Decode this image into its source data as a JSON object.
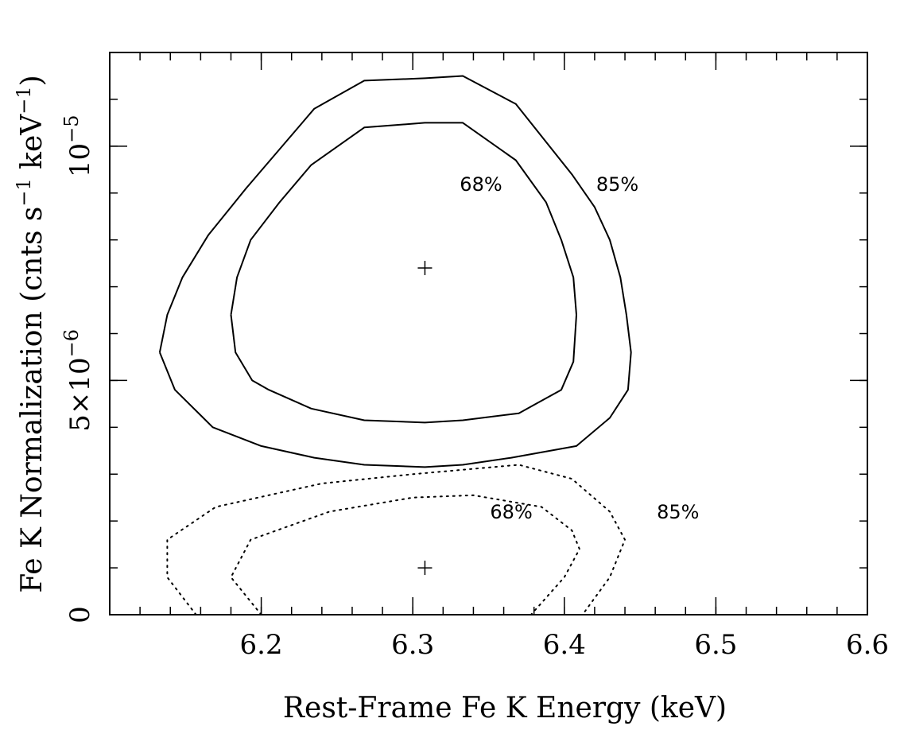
{
  "chart_data": {
    "type": "contour",
    "xlabel": "Rest-Frame Fe K Energy (keV)",
    "ylabel_parts": [
      "Fe K Normalization (cnts s",
      "−1",
      " keV",
      "−1",
      ")"
    ],
    "xlim": [
      6.1,
      6.6
    ],
    "ylim": [
      0,
      1.2e-05
    ],
    "x_ticks": [
      {
        "value": 6.2,
        "label": "6.2"
      },
      {
        "value": 6.3,
        "label": "6.3"
      },
      {
        "value": 6.4,
        "label": "6.4"
      },
      {
        "value": 6.5,
        "label": "6.5"
      },
      {
        "value": 6.6,
        "label": "6.6"
      }
    ],
    "y_ticks": [
      {
        "value": 0,
        "label": "0"
      },
      {
        "value": 5e-06,
        "label_main": "5×10",
        "label_exp": "−6"
      },
      {
        "value": 1e-05,
        "label_main": "10",
        "label_exp": "−5"
      }
    ],
    "x_minor_step": 0.02,
    "y_minor_step": 1e-06,
    "best_fits": [
      {
        "x": 6.308,
        "y": 7.4e-06
      },
      {
        "x": 6.308,
        "y": 1e-06
      }
    ],
    "contours": [
      {
        "name": "solid-85",
        "style": "solid",
        "label": "85%",
        "label_pos": {
          "x": 6.435,
          "y": 9.05e-06
        },
        "points": [
          [
            6.133,
            5.6e-06
          ],
          [
            6.138,
            6.4e-06
          ],
          [
            6.148,
            7.2e-06
          ],
          [
            6.165,
            8.1e-06
          ],
          [
            6.19,
            9.1e-06
          ],
          [
            6.235,
            1.08e-05
          ],
          [
            6.268,
            1.14e-05
          ],
          [
            6.308,
            1.145e-05
          ],
          [
            6.333,
            1.15e-05
          ],
          [
            6.368,
            1.09e-05
          ],
          [
            6.405,
            9.4e-06
          ],
          [
            6.42,
            8.7e-06
          ],
          [
            6.43,
            8e-06
          ],
          [
            6.437,
            7.2e-06
          ],
          [
            6.441,
            6.4e-06
          ],
          [
            6.444,
            5.6e-06
          ],
          [
            6.442,
            4.8e-06
          ],
          [
            6.43,
            4.2e-06
          ],
          [
            6.408,
            3.6e-06
          ],
          [
            6.365,
            3.35e-06
          ],
          [
            6.333,
            3.2e-06
          ],
          [
            6.308,
            3.15e-06
          ],
          [
            6.268,
            3.2e-06
          ],
          [
            6.235,
            3.35e-06
          ],
          [
            6.2,
            3.6e-06
          ],
          [
            6.168,
            4e-06
          ],
          [
            6.143,
            4.8e-06
          ],
          [
            6.133,
            5.6e-06
          ]
        ]
      },
      {
        "name": "solid-68",
        "style": "solid",
        "label": "68%",
        "label_pos": {
          "x": 6.345,
          "y": 9.05e-06
        },
        "points": [
          [
            6.18,
            6.4e-06
          ],
          [
            6.184,
            7.2e-06
          ],
          [
            6.193,
            8e-06
          ],
          [
            6.212,
            8.8e-06
          ],
          [
            6.233,
            9.6e-06
          ],
          [
            6.268,
            1.04e-05
          ],
          [
            6.308,
            1.05e-05
          ],
          [
            6.333,
            1.05e-05
          ],
          [
            6.368,
            9.7e-06
          ],
          [
            6.388,
            8.8e-06
          ],
          [
            6.398,
            8e-06
          ],
          [
            6.406,
            7.2e-06
          ],
          [
            6.408,
            6.4e-06
          ],
          [
            6.406,
            5.4e-06
          ],
          [
            6.398,
            4.8e-06
          ],
          [
            6.37,
            4.3e-06
          ],
          [
            6.333,
            4.15e-06
          ],
          [
            6.308,
            4.1e-06
          ],
          [
            6.268,
            4.15e-06
          ],
          [
            6.233,
            4.4e-06
          ],
          [
            6.205,
            4.8e-06
          ],
          [
            6.194,
            5e-06
          ],
          [
            6.183,
            5.6e-06
          ],
          [
            6.18,
            6.4e-06
          ]
        ]
      },
      {
        "name": "dotted-85",
        "style": "dotted",
        "label": "85%",
        "label_pos": {
          "x": 6.475,
          "y": 2.05e-06
        },
        "points": [
          [
            6.157,
            0
          ],
          [
            6.138,
            8e-07
          ],
          [
            6.138,
            1.6e-06
          ],
          [
            6.17,
            2.3e-06
          ],
          [
            6.24,
            2.8e-06
          ],
          [
            6.3,
            3e-06
          ],
          [
            6.37,
            3.2e-06
          ],
          [
            6.405,
            2.9e-06
          ],
          [
            6.43,
            2.2e-06
          ],
          [
            6.44,
            1.6e-06
          ],
          [
            6.43,
            8e-07
          ],
          [
            6.412,
            0
          ]
        ]
      },
      {
        "name": "dotted-68",
        "style": "dotted",
        "label": "68%",
        "label_pos": {
          "x": 6.365,
          "y": 2.05e-06
        },
        "points": [
          [
            6.2,
            0
          ],
          [
            6.18,
            8e-07
          ],
          [
            6.193,
            1.6e-06
          ],
          [
            6.245,
            2.2e-06
          ],
          [
            6.3,
            2.5e-06
          ],
          [
            6.34,
            2.55e-06
          ],
          [
            6.385,
            2.3e-06
          ],
          [
            6.405,
            1.8e-06
          ],
          [
            6.41,
            1.4e-06
          ],
          [
            6.4,
            8e-07
          ],
          [
            6.378,
            0
          ]
        ]
      }
    ]
  }
}
